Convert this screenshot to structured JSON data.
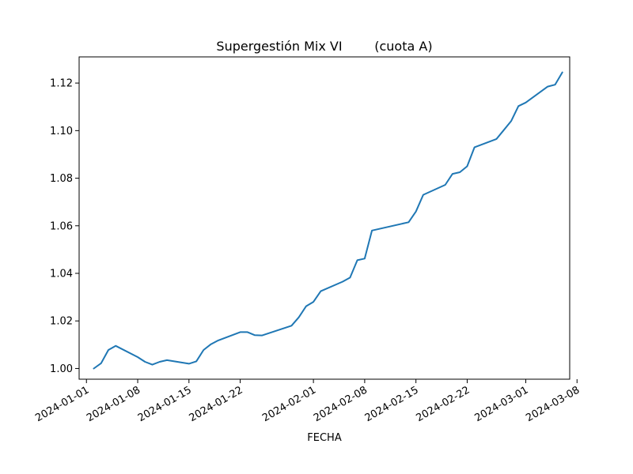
{
  "chart_data": {
    "type": "line",
    "title": "Supergestión Mix VI        (cuota A)",
    "xlabel": "FECHA",
    "ylabel": "",
    "xlim": [
      "2023-12-31",
      "2024-03-07"
    ],
    "ylim": [
      0.9955,
      1.131
    ],
    "grid": false,
    "x_ticks": [
      "2024-01-01",
      "2024-01-08",
      "2024-01-15",
      "2024-01-22",
      "2024-02-01",
      "2024-02-08",
      "2024-02-15",
      "2024-02-22",
      "2024-03-01",
      "2024-03-08"
    ],
    "y_ticks": [
      1.0,
      1.02,
      1.04,
      1.06,
      1.08,
      1.1,
      1.12
    ],
    "series": [
      {
        "name": "",
        "color": "#1f77b4",
        "x": [
          "2024-01-02",
          "2024-01-03",
          "2024-01-04",
          "2024-01-05",
          "2024-01-08",
          "2024-01-09",
          "2024-01-10",
          "2024-01-11",
          "2024-01-12",
          "2024-01-15",
          "2024-01-16",
          "2024-01-17",
          "2024-01-18",
          "2024-01-19",
          "2024-01-22",
          "2024-01-23",
          "2024-01-24",
          "2024-01-25",
          "2024-01-29",
          "2024-01-30",
          "2024-01-31",
          "2024-02-01",
          "2024-02-02",
          "2024-02-05",
          "2024-02-06",
          "2024-02-07",
          "2024-02-08",
          "2024-02-09",
          "2024-02-14",
          "2024-02-15",
          "2024-02-16",
          "2024-02-19",
          "2024-02-20",
          "2024-02-21",
          "2024-02-22",
          "2024-02-23",
          "2024-02-26",
          "2024-02-28",
          "2024-02-29",
          "2024-03-01",
          "2024-03-04",
          "2024-03-05",
          "2024-03-06"
        ],
        "y": [
          1.0,
          1.0022,
          1.0078,
          1.0095,
          1.0048,
          1.0028,
          1.0016,
          1.0028,
          1.0035,
          1.002,
          1.003,
          1.0078,
          1.0102,
          1.0118,
          1.0153,
          1.0153,
          1.014,
          1.0139,
          1.018,
          1.0215,
          1.0262,
          1.028,
          1.0325,
          1.0365,
          1.0382,
          1.0455,
          1.0462,
          1.058,
          1.0615,
          1.066,
          1.073,
          1.0772,
          1.0818,
          1.0825,
          1.085,
          1.093,
          1.0965,
          1.104,
          1.1103,
          1.1118,
          1.1185,
          1.1193,
          1.1245
        ]
      }
    ]
  }
}
